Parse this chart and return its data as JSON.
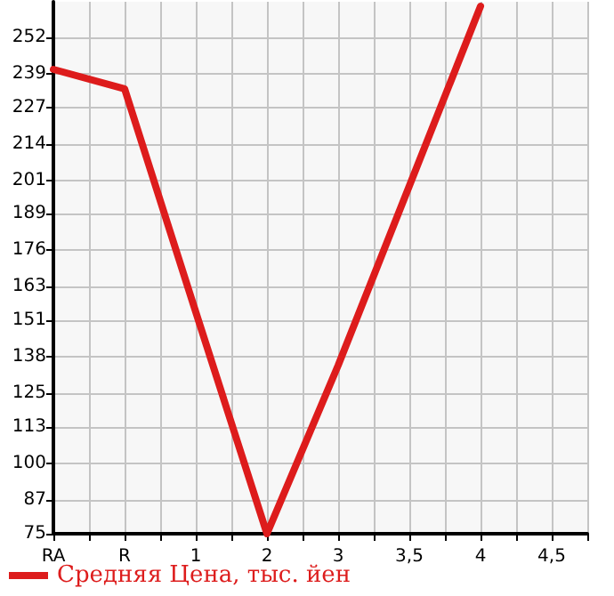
{
  "chart_data": {
    "type": "line",
    "categories": [
      "RA",
      "R",
      "1",
      "2",
      "3",
      "3,5",
      "4",
      "4,5"
    ],
    "series": [
      {
        "name": "Средняя Цена, тыс. йен",
        "color": "#dd1c1c",
        "values": [
          240.5,
          233.6,
          154,
          75,
          135,
          199,
          263,
          null
        ]
      }
    ],
    "ylim": [
      75,
      264.6
    ],
    "yticks": [
      75,
      87,
      100,
      113,
      125,
      138,
      151,
      163,
      176,
      189,
      201,
      214,
      227,
      239,
      252
    ],
    "grid": true,
    "legend": "bottom left",
    "marker": "none",
    "line_style": "solid"
  }
}
